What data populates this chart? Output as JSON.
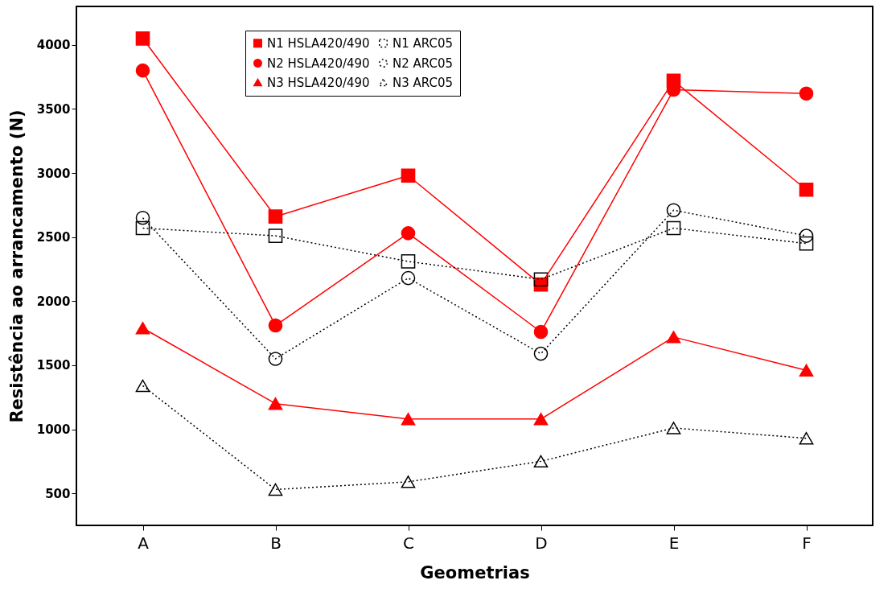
{
  "chart_data": {
    "type": "line",
    "xlabel": "Geometrias",
    "ylabel": "Resistência ao arrancamento (N)",
    "categories": [
      "A",
      "B",
      "C",
      "D",
      "E",
      "F"
    ],
    "ylim": [
      250,
      4300
    ],
    "yticks": [
      500,
      1000,
      1500,
      2000,
      2500,
      3000,
      3500,
      4000
    ],
    "grid": false,
    "legend": "top",
    "series": [
      {
        "name": "N1 HSLA420/490",
        "color": "#ff0000",
        "marker": "square",
        "line_style": "solid",
        "values": [
          4050,
          2660,
          2980,
          2130,
          3720,
          2870
        ]
      },
      {
        "name": "N2 HSLA420/490",
        "color": "#ff0000",
        "marker": "circle",
        "line_style": "solid",
        "values": [
          3800,
          1810,
          2530,
          1760,
          3650,
          3620
        ]
      },
      {
        "name": "N3 HSLA420/490",
        "color": "#ff0000",
        "marker": "triangle",
        "line_style": "solid",
        "values": [
          1790,
          1200,
          1080,
          1080,
          1720,
          1460
        ]
      },
      {
        "name": "N1 ARC05",
        "color": "#000000",
        "marker": "square",
        "line_style": "dotted",
        "values": [
          2570,
          2510,
          2310,
          2170,
          2570,
          2450
        ]
      },
      {
        "name": "N2 ARC05",
        "color": "#000000",
        "marker": "circle",
        "line_style": "dotted",
        "values": [
          2650,
          1550,
          2180,
          1590,
          2710,
          2510
        ]
      },
      {
        "name": "N3 ARC05",
        "color": "#000000",
        "marker": "triangle",
        "line_style": "dotted",
        "values": [
          1340,
          530,
          590,
          750,
          1010,
          930
        ]
      }
    ]
  }
}
